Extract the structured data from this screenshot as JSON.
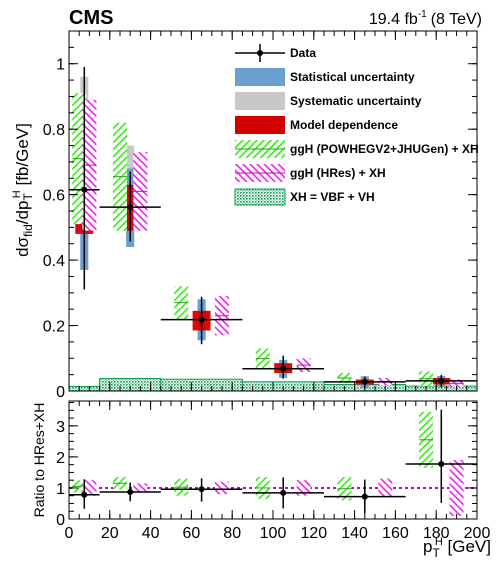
{
  "header": {
    "experiment": "CMS",
    "lumi": "19.4 fb",
    "lumi_exp": "-1",
    "energy": "(8 TeV)"
  },
  "colors": {
    "data": "#000000",
    "stat": "#6a9fd0",
    "syst": "#c8c8c8",
    "model": "#d40000",
    "powheg": "#33ee11",
    "hres": "#ee22ee",
    "xh": "#119955",
    "ratio_line": "#cc00cc"
  },
  "chart_data": [
    {
      "type": "bar",
      "panel": "main",
      "ylabel": "dσfid/dpTH [fb/GeV]",
      "xlim": [
        0,
        200
      ],
      "ylim": [
        0,
        1.1
      ],
      "yticks": [
        0,
        0.2,
        0.4,
        0.6,
        0.8,
        1
      ],
      "ytick_labels": [
        "0",
        "0.2",
        "0.4",
        "0.6",
        "0.8",
        "1"
      ],
      "legend_position": "top-right",
      "legend": [
        {
          "key": "data",
          "label": "Data"
        },
        {
          "key": "stat",
          "label": "Statistical uncertainty"
        },
        {
          "key": "syst",
          "label": "Systematic uncertainty"
        },
        {
          "key": "model",
          "label": "Model dependence"
        },
        {
          "key": "powheg",
          "label": "ggH (POWHEGV2+JHUGen) + XH"
        },
        {
          "key": "hres",
          "label": "ggH (HRes) + XH"
        },
        {
          "key": "xh",
          "label": "XH = VBF + VH"
        }
      ],
      "bins": [
        [
          0,
          15
        ],
        [
          15,
          45
        ],
        [
          45,
          85
        ],
        [
          85,
          125
        ],
        [
          125,
          165
        ],
        [
          165,
          200
        ]
      ],
      "data": {
        "x": [
          7.5,
          30,
          65,
          105,
          145,
          182.5
        ],
        "y": [
          0.615,
          0.562,
          0.218,
          0.068,
          0.028,
          0.031
        ],
        "err_low": [
          0.305,
          0.105,
          0.075,
          0.03,
          0.018,
          0.02
        ],
        "err_high": [
          0.375,
          0.108,
          0.07,
          0.04,
          0.016,
          0.018
        ]
      },
      "stat_band": [
        [
          0.37,
          0.87
        ],
        [
          0.44,
          0.68
        ],
        [
          0.155,
          0.28
        ],
        [
          0.04,
          0.095
        ],
        [
          0.01,
          0.045
        ],
        [
          0.015,
          0.046
        ]
      ],
      "syst_band": [
        [
          0.37,
          0.96
        ],
        [
          0.45,
          0.75
        ],
        [
          0.16,
          0.28
        ],
        [
          0.045,
          0.095
        ],
        [
          0.015,
          0.042
        ],
        [
          0.018,
          0.046
        ]
      ],
      "model_band": [
        [
          0.48,
          0.76
        ],
        [
          0.49,
          0.63
        ],
        [
          0.185,
          0.245
        ],
        [
          0.055,
          0.085
        ],
        [
          0.02,
          0.035
        ],
        [
          0.02,
          0.04
        ]
      ],
      "powheg": {
        "x": [
          5,
          25,
          55,
          95,
          135,
          175
        ],
        "low": [
          0.51,
          0.49,
          0.22,
          0.068,
          0.025,
          0.015
        ],
        "high": [
          0.91,
          0.82,
          0.32,
          0.13,
          0.055,
          0.06
        ]
      },
      "hres": {
        "x": [
          10,
          35,
          75,
          115,
          155,
          190
        ],
        "low": [
          0.49,
          0.49,
          0.17,
          0.058,
          0.018,
          0.012
        ],
        "high": [
          0.89,
          0.73,
          0.29,
          0.1,
          0.04,
          0.035
        ]
      },
      "xh_steps": [
        0.014,
        0.038,
        0.036,
        0.028,
        0.02,
        0.015
      ]
    },
    {
      "type": "bar",
      "panel": "ratio",
      "xlabel": "pTH [GeV]",
      "ylabel": "Ratio to HRes+XH",
      "xlim": [
        0,
        200
      ],
      "ylim": [
        0,
        3.8
      ],
      "xticks": [
        0,
        20,
        40,
        60,
        80,
        100,
        120,
        140,
        160,
        180,
        200
      ],
      "xtick_labels": [
        "0",
        "20",
        "40",
        "60",
        "80",
        "100",
        "120",
        "140",
        "160",
        "180",
        "200"
      ],
      "yticks": [
        0,
        1,
        2,
        3
      ],
      "ytick_labels": [
        "0",
        "1",
        "2",
        "3"
      ],
      "reference": 1.0,
      "data": {
        "y": [
          0.78,
          0.87,
          0.96,
          0.84,
          0.72,
          1.77
        ],
        "err_low": [
          0.45,
          0.3,
          0.4,
          0.5,
          0.55,
          1.25
        ],
        "err_high": [
          0.5,
          0.3,
          0.35,
          0.5,
          0.55,
          1.75
        ]
      },
      "powheg": {
        "low": [
          0.85,
          0.95,
          0.75,
          0.65,
          0.6,
          1.65
        ],
        "high": [
          1.25,
          1.35,
          1.3,
          1.35,
          1.35,
          3.45
        ]
      },
      "hres": {
        "low": [
          0.75,
          0.85,
          0.8,
          0.75,
          0.7,
          0.1
        ],
        "high": [
          1.25,
          1.15,
          1.2,
          1.25,
          1.3,
          1.9
        ]
      }
    }
  ]
}
